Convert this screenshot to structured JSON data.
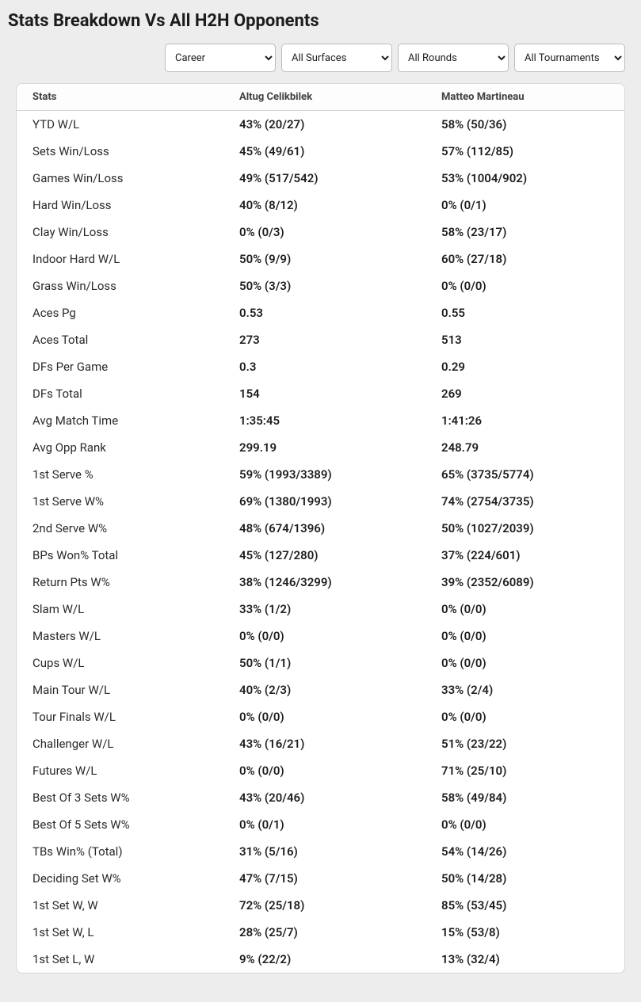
{
  "title": "Stats Breakdown Vs All H2H Opponents",
  "filters": {
    "timeframe": {
      "selected": "Career",
      "options": [
        "Career"
      ]
    },
    "surface": {
      "selected": "All Surfaces",
      "options": [
        "All Surfaces"
      ]
    },
    "round": {
      "selected": "All Rounds",
      "options": [
        "All Rounds"
      ]
    },
    "tournament": {
      "selected": "All Tournaments",
      "options": [
        "All Tournaments"
      ]
    }
  },
  "columns": [
    "Stats",
    "Altug Celikbilek",
    "Matteo Martineau"
  ],
  "rows": [
    {
      "stat": "YTD W/L",
      "p1": "43% (20/27)",
      "p2": "58% (50/36)"
    },
    {
      "stat": "Sets Win/Loss",
      "p1": "45% (49/61)",
      "p2": "57% (112/85)"
    },
    {
      "stat": "Games Win/Loss",
      "p1": "49% (517/542)",
      "p2": "53% (1004/902)"
    },
    {
      "stat": "Hard Win/Loss",
      "p1": "40% (8/12)",
      "p2": "0% (0/1)"
    },
    {
      "stat": "Clay Win/Loss",
      "p1": "0% (0/3)",
      "p2": "58% (23/17)"
    },
    {
      "stat": "Indoor Hard W/L",
      "p1": "50% (9/9)",
      "p2": "60% (27/18)"
    },
    {
      "stat": "Grass Win/Loss",
      "p1": "50% (3/3)",
      "p2": "0% (0/0)"
    },
    {
      "stat": "Aces Pg",
      "p1": "0.53",
      "p2": "0.55"
    },
    {
      "stat": "Aces Total",
      "p1": "273",
      "p2": "513"
    },
    {
      "stat": "DFs Per Game",
      "p1": "0.3",
      "p2": "0.29"
    },
    {
      "stat": "DFs Total",
      "p1": "154",
      "p2": "269"
    },
    {
      "stat": "Avg Match Time",
      "p1": "1:35:45",
      "p2": "1:41:26"
    },
    {
      "stat": "Avg Opp Rank",
      "p1": "299.19",
      "p2": "248.79"
    },
    {
      "stat": "1st Serve %",
      "p1": "59% (1993/3389)",
      "p2": "65% (3735/5774)"
    },
    {
      "stat": "1st Serve W%",
      "p1": "69% (1380/1993)",
      "p2": "74% (2754/3735)"
    },
    {
      "stat": "2nd Serve W%",
      "p1": "48% (674/1396)",
      "p2": "50% (1027/2039)"
    },
    {
      "stat": "BPs Won% Total",
      "p1": "45% (127/280)",
      "p2": "37% (224/601)"
    },
    {
      "stat": "Return Pts W%",
      "p1": "38% (1246/3299)",
      "p2": "39% (2352/6089)"
    },
    {
      "stat": "Slam W/L",
      "p1": "33% (1/2)",
      "p2": "0% (0/0)"
    },
    {
      "stat": "Masters W/L",
      "p1": "0% (0/0)",
      "p2": "0% (0/0)"
    },
    {
      "stat": "Cups W/L",
      "p1": "50% (1/1)",
      "p2": "0% (0/0)"
    },
    {
      "stat": "Main Tour W/L",
      "p1": "40% (2/3)",
      "p2": "33% (2/4)"
    },
    {
      "stat": "Tour Finals W/L",
      "p1": "0% (0/0)",
      "p2": "0% (0/0)"
    },
    {
      "stat": "Challenger W/L",
      "p1": "43% (16/21)",
      "p2": "51% (23/22)"
    },
    {
      "stat": "Futures W/L",
      "p1": "0% (0/0)",
      "p2": "71% (25/10)"
    },
    {
      "stat": "Best Of 3 Sets W%",
      "p1": "43% (20/46)",
      "p2": "58% (49/84)"
    },
    {
      "stat": "Best Of 5 Sets W%",
      "p1": "0% (0/1)",
      "p2": "0% (0/0)"
    },
    {
      "stat": "TBs Win% (Total)",
      "p1": "31% (5/16)",
      "p2": "54% (14/26)"
    },
    {
      "stat": "Deciding Set W%",
      "p1": "47% (7/15)",
      "p2": "50% (14/28)"
    },
    {
      "stat": "1st Set W, W",
      "p1": "72% (25/18)",
      "p2": "85% (53/45)"
    },
    {
      "stat": "1st Set W, L",
      "p1": "28% (25/7)",
      "p2": "15% (53/8)"
    },
    {
      "stat": "1st Set L, W",
      "p1": "9% (22/2)",
      "p2": "13% (32/4)"
    }
  ]
}
